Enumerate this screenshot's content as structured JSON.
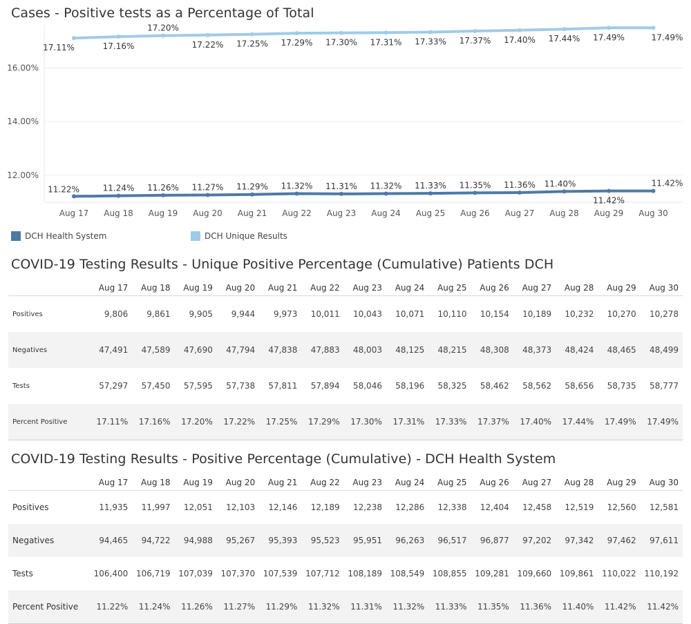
{
  "chart_title": "Cases - Positive tests as a Percentage of Total",
  "chart_data": {
    "type": "line",
    "title": "Cases - Positive tests as a Percentage of Total",
    "categories": [
      "Aug 17",
      "Aug 18",
      "Aug 19",
      "Aug 20",
      "Aug 21",
      "Aug 22",
      "Aug 23",
      "Aug 24",
      "Aug 25",
      "Aug 26",
      "Aug 27",
      "Aug 28",
      "Aug 29",
      "Aug 30"
    ],
    "y_ticks": [
      "16.00%",
      "14.00%",
      "12.00%"
    ],
    "y_tick_values": [
      16,
      14,
      12
    ],
    "ylim": [
      11,
      17.6
    ],
    "grid": true,
    "legend_placement": "bottom-left",
    "series": [
      {
        "name": "DCH Health System",
        "color": "#4e79a7",
        "values": [
          11.22,
          11.24,
          11.26,
          11.27,
          11.29,
          11.32,
          11.31,
          11.32,
          11.33,
          11.35,
          11.36,
          11.4,
          11.42,
          11.42
        ],
        "labels": [
          "11.22%",
          "11.24%",
          "11.26%",
          "11.27%",
          "11.29%",
          "11.32%",
          "11.31%",
          "11.32%",
          "11.33%",
          "11.35%",
          "11.36%",
          "11.40%",
          "11.42%",
          "11.42%"
        ]
      },
      {
        "name": "DCH Unique Results",
        "color": "#a0cbe8",
        "values": [
          17.11,
          17.16,
          17.2,
          17.22,
          17.25,
          17.29,
          17.3,
          17.31,
          17.33,
          17.37,
          17.4,
          17.44,
          17.49,
          17.49
        ],
        "labels": [
          "17.11%",
          "17.16%",
          "17.20%",
          "17.22%",
          "17.25%",
          "17.29%",
          "17.30%",
          "17.31%",
          "17.33%",
          "17.37%",
          "17.40%",
          "17.44%",
          "17.49%",
          "17.49%"
        ]
      }
    ]
  },
  "legend": [
    {
      "label": "DCH Health System",
      "color": "#4e79a7"
    },
    {
      "label": "DCH Unique Results",
      "color": "#a0cbe8"
    }
  ],
  "table1": {
    "title": "COVID-19 Testing Results - Unique Positive Percentage (Cumulative) Patients DCH",
    "columns": [
      "Aug 17",
      "Aug 18",
      "Aug 19",
      "Aug 20",
      "Aug 21",
      "Aug 22",
      "Aug 23",
      "Aug 24",
      "Aug 25",
      "Aug 26",
      "Aug 27",
      "Aug 28",
      "Aug 29",
      "Aug 30"
    ],
    "rows": [
      {
        "label": "Positives",
        "values": [
          "9,806",
          "9,861",
          "9,905",
          "9,944",
          "9,973",
          "10,011",
          "10,043",
          "10,071",
          "10,110",
          "10,154",
          "10,189",
          "10,232",
          "10,270",
          "10,278"
        ]
      },
      {
        "label": "Negatives",
        "values": [
          "47,491",
          "47,589",
          "47,690",
          "47,794",
          "47,838",
          "47,883",
          "48,003",
          "48,125",
          "48,215",
          "48,308",
          "48,373",
          "48,424",
          "48,465",
          "48,499"
        ]
      },
      {
        "label": "Tests",
        "values": [
          "57,297",
          "57,450",
          "57,595",
          "57,738",
          "57,811",
          "57,894",
          "58,046",
          "58,196",
          "58,325",
          "58,462",
          "58,562",
          "58,656",
          "58,735",
          "58,777"
        ]
      },
      {
        "label": "Percent Positive",
        "values": [
          "17.11%",
          "17.16%",
          "17.20%",
          "17.22%",
          "17.25%",
          "17.29%",
          "17.30%",
          "17.31%",
          "17.33%",
          "17.37%",
          "17.40%",
          "17.44%",
          "17.49%",
          "17.49%"
        ]
      }
    ]
  },
  "table2": {
    "title": "COVID-19 Testing Results - Positive Percentage (Cumulative) - DCH Health System",
    "columns": [
      "Aug 17",
      "Aug 18",
      "Aug 19",
      "Aug 20",
      "Aug 21",
      "Aug 22",
      "Aug 23",
      "Aug 24",
      "Aug 25",
      "Aug 26",
      "Aug 27",
      "Aug 28",
      "Aug 29",
      "Aug 30"
    ],
    "rows": [
      {
        "label": "Positives",
        "values": [
          "11,935",
          "11,997",
          "12,051",
          "12,103",
          "12,146",
          "12,189",
          "12,238",
          "12,286",
          "12,338",
          "12,404",
          "12,458",
          "12,519",
          "12,560",
          "12,581"
        ]
      },
      {
        "label": "Negatives",
        "values": [
          "94,465",
          "94,722",
          "94,988",
          "95,267",
          "95,393",
          "95,523",
          "95,951",
          "96,263",
          "96,517",
          "96,877",
          "97,202",
          "97,342",
          "97,462",
          "97,611"
        ]
      },
      {
        "label": "Tests",
        "values": [
          "106,400",
          "106,719",
          "107,039",
          "107,370",
          "107,539",
          "107,712",
          "108,189",
          "108,549",
          "108,855",
          "109,281",
          "109,660",
          "109,861",
          "110,022",
          "110,192"
        ]
      },
      {
        "label": "Percent Positive",
        "values": [
          "11.22%",
          "11.24%",
          "11.26%",
          "11.27%",
          "11.29%",
          "11.32%",
          "11.31%",
          "11.32%",
          "11.33%",
          "11.35%",
          "11.36%",
          "11.40%",
          "11.42%",
          "11.42%"
        ]
      }
    ]
  }
}
